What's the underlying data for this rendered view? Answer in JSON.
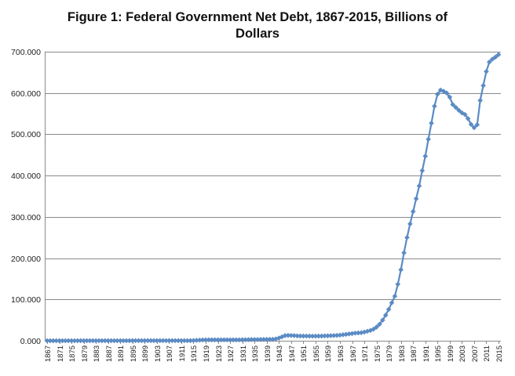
{
  "chart_data": {
    "type": "line",
    "title_line1": "Figure 1: Federal Government Net Debt, 1867-2015, Billions of",
    "title_line2": "Dollars",
    "xlabel": "",
    "ylabel": "",
    "ylim": [
      0,
      700
    ],
    "ytick_values": [
      0,
      100,
      200,
      300,
      400,
      500,
      600,
      700
    ],
    "ytick_labels": [
      "0.000",
      "100.000",
      "200.000",
      "300.000",
      "400.000",
      "500.000",
      "600.000",
      "700.000"
    ],
    "xtick_labels": [
      "1867",
      "1871",
      "1875",
      "1879",
      "1883",
      "1887",
      "1891",
      "1895",
      "1899",
      "1903",
      "1907",
      "1911",
      "1915",
      "1919",
      "1923",
      "1927",
      "1931",
      "1935",
      "1939",
      "1943",
      "1947",
      "1951",
      "1955",
      "1959",
      "1963",
      "1967",
      "1971",
      "1975",
      "1979",
      "1983",
      "1987",
      "1991",
      "1995",
      "1999",
      "2003",
      "2007",
      "2011",
      "2015"
    ],
    "grid": true,
    "legend": "none",
    "colors": {
      "series": "#5b8bc4",
      "grid": "#8a8a8a",
      "axis": "#8a8a8a"
    },
    "series": [
      {
        "name": "Federal Government Net Debt",
        "x_start": 1867,
        "x_end": 2015,
        "values": [
          0.1,
          0.1,
          0.1,
          0.1,
          0.1,
          0.1,
          0.1,
          0.1,
          0.1,
          0.1,
          0.2,
          0.2,
          0.2,
          0.2,
          0.2,
          0.2,
          0.2,
          0.2,
          0.2,
          0.2,
          0.2,
          0.2,
          0.2,
          0.2,
          0.2,
          0.2,
          0.2,
          0.2,
          0.3,
          0.3,
          0.3,
          0.3,
          0.3,
          0.3,
          0.3,
          0.3,
          0.3,
          0.3,
          0.3,
          0.3,
          0.3,
          0.3,
          0.3,
          0.3,
          0.3,
          0.3,
          0.3,
          0.3,
          0.6,
          1.0,
          1.5,
          2.0,
          2.3,
          2.3,
          2.3,
          2.3,
          2.3,
          2.3,
          2.3,
          2.3,
          2.3,
          2.3,
          2.3,
          2.3,
          2.5,
          2.6,
          2.8,
          3.0,
          3.0,
          3.1,
          3.2,
          3.3,
          3.4,
          3.4,
          3.5,
          4.5,
          6.5,
          9.5,
          12.5,
          13.0,
          12.8,
          12.5,
          11.8,
          11.5,
          11.5,
          11.4,
          11.3,
          11.2,
          11.2,
          11.3,
          11.5,
          11.8,
          12.0,
          12.3,
          12.6,
          13.0,
          13.5,
          14.5,
          15.5,
          16.5,
          17.5,
          18.5,
          19.0,
          19.5,
          21.0,
          23.0,
          25.0,
          28.0,
          33.0,
          40.0,
          50.0,
          62.0,
          76.0,
          92.0,
          108.0,
          137.0,
          172.0,
          213.0,
          250.0,
          283.0,
          313.0,
          344.0,
          375.0,
          412.0,
          447.0,
          488.0,
          527.0,
          568.0,
          597.0,
          607.0,
          604.0,
          600.0,
          590.0,
          572.0,
          565.0,
          558.0,
          552.0,
          548.0,
          538.0,
          524.0,
          516.0,
          523.0,
          582.0,
          618.0,
          652.0,
          675.0,
          682.0,
          687.0,
          693.0
        ]
      }
    ]
  }
}
